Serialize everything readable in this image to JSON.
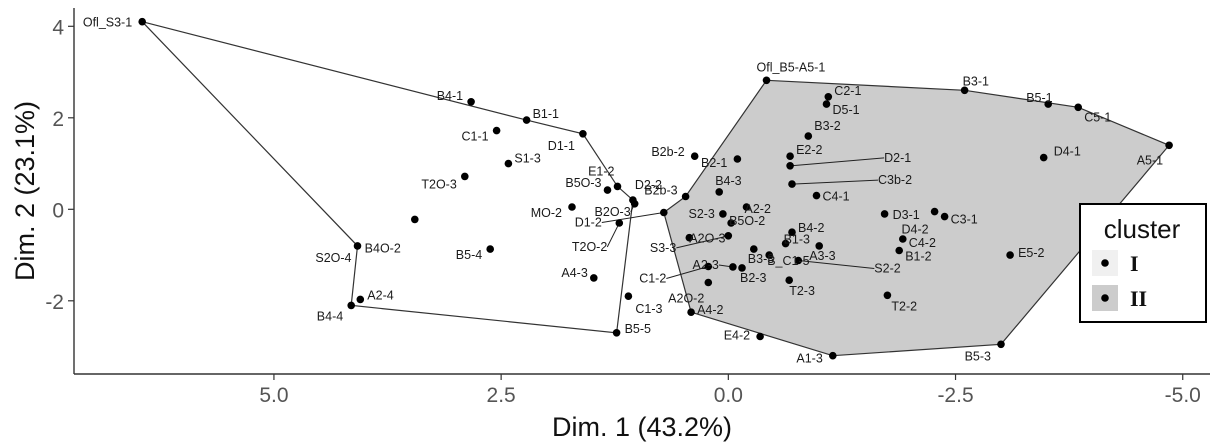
{
  "chart_data": {
    "type": "scatter",
    "xlabel": "Dim. 1 (43.2%)",
    "ylabel": "Dim. 2 (23.1%)",
    "xlim": [
      7.2,
      -5.3
    ],
    "ylim": [
      -3.6,
      4.4
    ],
    "x_reversed": true,
    "x_ticks": [
      {
        "value": 5.0,
        "label": "5.0"
      },
      {
        "value": 2.5,
        "label": "2.5"
      },
      {
        "value": 0.0,
        "label": "0.0"
      },
      {
        "value": -2.5,
        "label": "-2.5"
      },
      {
        "value": -5.0,
        "label": "-5.0"
      }
    ],
    "y_ticks": [
      {
        "value": -2,
        "label": "-2"
      },
      {
        "value": 0,
        "label": "0"
      },
      {
        "value": 2,
        "label": "2"
      },
      {
        "value": 4,
        "label": "4"
      }
    ],
    "grid": false,
    "legend": {
      "title": "cluster",
      "position": "right",
      "entries": [
        "I",
        "II"
      ]
    },
    "colors": {
      "hull_I_fill": "#ffffff",
      "hull_II_fill": "#cccccc",
      "outline": "#333333",
      "point": "#000000"
    },
    "hull_I": [
      "Ofl_S3-1",
      "B1-1",
      "D1-1",
      "E1-2",
      "D2-2",
      "B5-5",
      "B4-4",
      "S2O-4"
    ],
    "hull_II": [
      "Ofl_B5-A5-1",
      "B3-1",
      "C5-1",
      "A5-1",
      "B5-3",
      "A1-3",
      "A4-2",
      "D1-2",
      "B2b-3"
    ],
    "points": [
      {
        "label": "Ofl_S3-1",
        "x": 6.45,
        "y": 4.1,
        "cluster": "I"
      },
      {
        "label": "B4-1",
        "x": 2.83,
        "y": 2.35,
        "cluster": "I"
      },
      {
        "label": "B1-1",
        "x": 2.22,
        "y": 1.95,
        "cluster": "I"
      },
      {
        "label": "C1-1",
        "x": 2.55,
        "y": 1.72,
        "cluster": "I"
      },
      {
        "label": "D1-1",
        "x": 1.6,
        "y": 1.65,
        "cluster": "I"
      },
      {
        "label": "S1-3",
        "x": 2.42,
        "y": 1.0,
        "cluster": "I"
      },
      {
        "label": "T2O-3",
        "x": 2.9,
        "y": 0.72,
        "cluster": "I"
      },
      {
        "label": "E1-2",
        "x": 1.22,
        "y": 0.5,
        "cluster": "I"
      },
      {
        "label": "B5O-3",
        "x": 1.33,
        "y": 0.42,
        "cluster": "I"
      },
      {
        "label": "D2-2",
        "x": 1.05,
        "y": 0.2,
        "cluster": "I"
      },
      {
        "label": "MO-2",
        "x": 1.72,
        "y": 0.05,
        "cluster": "I"
      },
      {
        "label": "B2O-3",
        "x": 1.03,
        "y": 0.12,
        "cluster": "I"
      },
      {
        "label": "T2O-2",
        "x": 1.2,
        "y": -0.3,
        "cluster": "I"
      },
      {
        "label": "B4O-2",
        "x": 3.45,
        "y": -0.22,
        "cluster": "I"
      },
      {
        "label": "S2O-4",
        "x": 4.08,
        "y": -0.8,
        "cluster": "I"
      },
      {
        "label": "B5-4",
        "x": 2.62,
        "y": -0.87,
        "cluster": "I"
      },
      {
        "label": "A4-3",
        "x": 1.48,
        "y": -1.5,
        "cluster": "I"
      },
      {
        "label": "A2-4",
        "x": 4.05,
        "y": -1.97,
        "cluster": "I"
      },
      {
        "label": "B4-4",
        "x": 4.15,
        "y": -2.1,
        "cluster": "I"
      },
      {
        "label": "C1-3",
        "x": 1.1,
        "y": -1.9,
        "cluster": "I"
      },
      {
        "label": "B5-5",
        "x": 1.23,
        "y": -2.7,
        "cluster": "I"
      },
      {
        "label": "Ofl_B5-A5-1",
        "x": -0.42,
        "y": 2.82,
        "cluster": "II"
      },
      {
        "label": "B3-1",
        "x": -2.6,
        "y": 2.6,
        "cluster": "II"
      },
      {
        "label": "C2-1",
        "x": -1.1,
        "y": 2.46,
        "cluster": "II"
      },
      {
        "label": "D5-1",
        "x": -1.08,
        "y": 2.3,
        "cluster": "II"
      },
      {
        "label": "B5-1",
        "x": -3.52,
        "y": 2.3,
        "cluster": "II"
      },
      {
        "label": "C5-1",
        "x": -3.85,
        "y": 2.23,
        "cluster": "II"
      },
      {
        "label": "B3-2",
        "x": -0.88,
        "y": 1.6,
        "cluster": "II"
      },
      {
        "label": "A5-1",
        "x": -4.85,
        "y": 1.4,
        "cluster": "II"
      },
      {
        "label": "D4-1",
        "x": -3.47,
        "y": 1.13,
        "cluster": "II"
      },
      {
        "label": "B2b-2",
        "x": 0.37,
        "y": 1.16,
        "cluster": "II"
      },
      {
        "label": "E2-2",
        "x": -0.68,
        "y": 1.16,
        "cluster": "II"
      },
      {
        "label": "D2-1",
        "x": -0.68,
        "y": 0.95,
        "cluster": "II"
      },
      {
        "label": "B2-1",
        "x": -0.1,
        "y": 1.1,
        "cluster": "II"
      },
      {
        "label": "C3b-2",
        "x": -0.7,
        "y": 0.55,
        "cluster": "II"
      },
      {
        "label": "B4-3",
        "x": 0.1,
        "y": 0.38,
        "cluster": "II"
      },
      {
        "label": "C4-1",
        "x": -0.97,
        "y": 0.3,
        "cluster": "II"
      },
      {
        "label": "B2b-3",
        "x": 0.47,
        "y": 0.28,
        "cluster": "II"
      },
      {
        "label": "A2-2",
        "x": -0.2,
        "y": 0.05,
        "cluster": "II"
      },
      {
        "label": "S2-3",
        "x": 0.06,
        "y": -0.1,
        "cluster": "II"
      },
      {
        "label": "D3-1",
        "x": -1.72,
        "y": -0.1,
        "cluster": "II"
      },
      {
        "label": "C3-1",
        "x": -2.38,
        "y": -0.16,
        "cluster": "II"
      },
      {
        "label": "D4-2",
        "x": -2.27,
        "y": -0.05,
        "cluster": "II"
      },
      {
        "label": "B5O-2",
        "x": -0.03,
        "y": -0.3,
        "cluster": "II"
      },
      {
        "label": "B4-2",
        "x": -0.7,
        "y": -0.5,
        "cluster": "II"
      },
      {
        "label": "D1-2",
        "x": 0.71,
        "y": -0.07,
        "cluster": "II"
      },
      {
        "label": "C4-2",
        "x": -1.92,
        "y": -0.65,
        "cluster": "II"
      },
      {
        "label": "A2O-3",
        "x": 0.43,
        "y": -0.62,
        "cluster": "II"
      },
      {
        "label": "B1-3",
        "x": -0.63,
        "y": -0.75,
        "cluster": "II"
      },
      {
        "label": "A3-3",
        "x": -1.0,
        "y": -0.8,
        "cluster": "II"
      },
      {
        "label": "E5-2",
        "x": -3.1,
        "y": -1.0,
        "cluster": "II"
      },
      {
        "label": "B1-2",
        "x": -1.88,
        "y": -0.9,
        "cluster": "II"
      },
      {
        "label": "S3-3",
        "x": 0.0,
        "y": -0.58,
        "cluster": "II"
      },
      {
        "label": "B3-3",
        "x": -0.28,
        "y": -0.87,
        "cluster": "II"
      },
      {
        "label": "B_C1-5",
        "x": -0.45,
        "y": -1.0,
        "cluster": "II"
      },
      {
        "label": "S2-2",
        "x": -0.77,
        "y": -1.12,
        "cluster": "II"
      },
      {
        "label": "A2-3",
        "x": -0.05,
        "y": -1.26,
        "cluster": "II"
      },
      {
        "label": "C1-2",
        "x": 0.22,
        "y": -1.25,
        "cluster": "II"
      },
      {
        "label": "B2-3",
        "x": -0.15,
        "y": -1.28,
        "cluster": "II"
      },
      {
        "label": "A2O-2",
        "x": 0.22,
        "y": -1.6,
        "cluster": "II"
      },
      {
        "label": "T2-3",
        "x": -0.67,
        "y": -1.55,
        "cluster": "II"
      },
      {
        "label": "T2-2",
        "x": -1.75,
        "y": -1.88,
        "cluster": "II"
      },
      {
        "label": "A4-2",
        "x": 0.41,
        "y": -2.25,
        "cluster": "II"
      },
      {
        "label": "E4-2",
        "x": -0.35,
        "y": -2.78,
        "cluster": "II"
      },
      {
        "label": "B5-3",
        "x": -3.0,
        "y": -2.95,
        "cluster": "II"
      },
      {
        "label": "A1-3",
        "x": -1.15,
        "y": -3.2,
        "cluster": "II"
      }
    ]
  }
}
